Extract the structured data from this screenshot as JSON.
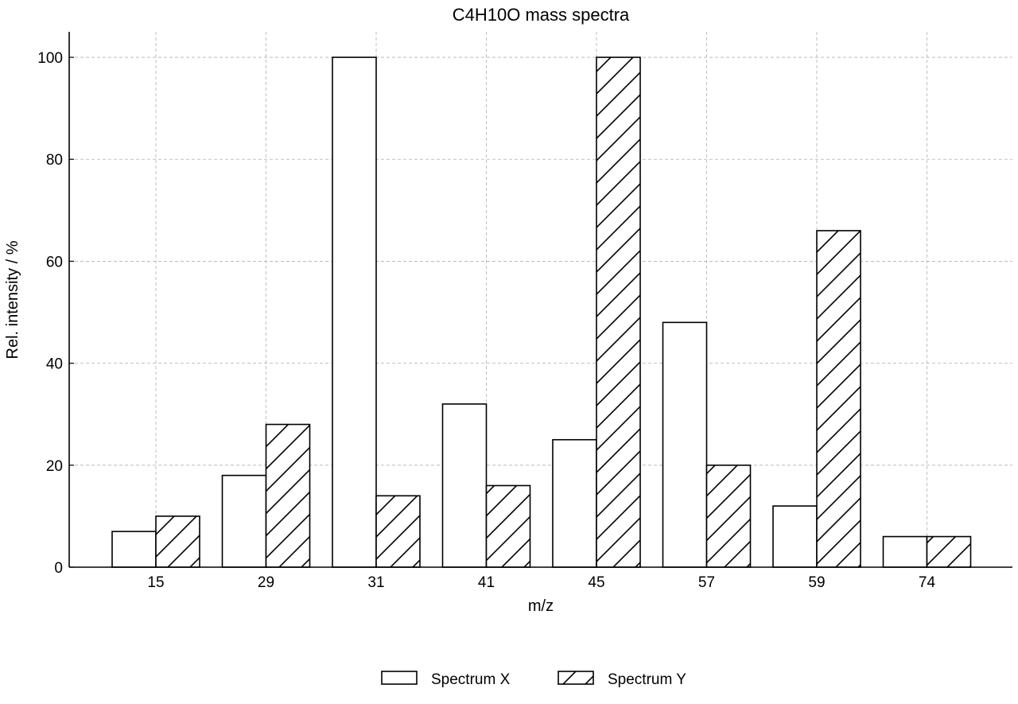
{
  "chart_data": {
    "type": "bar",
    "title": "C4H10O mass spectra",
    "xlabel": "m/z",
    "ylabel": "Rel. intensity / %",
    "categories": [
      "15",
      "29",
      "31",
      "41",
      "45",
      "57",
      "59",
      "74"
    ],
    "ylim": [
      0,
      105
    ],
    "yticks": [
      0,
      20,
      40,
      60,
      80,
      100
    ],
    "grid": true,
    "legend_position": "bottom-center",
    "series": [
      {
        "name": "Spectrum X",
        "pattern": "none",
        "values": [
          7,
          18,
          100,
          32,
          25,
          48,
          12,
          6
        ]
      },
      {
        "name": "Spectrum Y",
        "pattern": "hatch",
        "values": [
          10,
          28,
          14,
          16,
          100,
          20,
          66,
          6
        ]
      }
    ]
  }
}
